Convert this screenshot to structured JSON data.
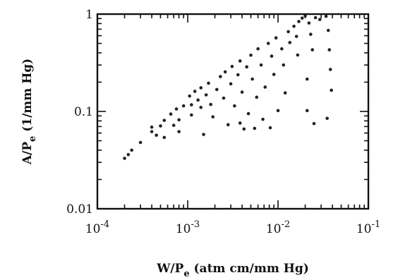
{
  "chart_data": {
    "type": "scatter",
    "title": "",
    "xlabel": {
      "main": "W/P",
      "sub": "e",
      "rest": " (atm cm/mm Hg)"
    },
    "ylabel": {
      "main": "A/P",
      "sub": "e",
      "rest": " (1/mm Hg)"
    },
    "x_scale": "log",
    "y_scale": "log",
    "xlim": [
      0.0001,
      0.1
    ],
    "ylim": [
      0.01,
      1
    ],
    "x_ticks": [
      {
        "value": 0.0001,
        "base": "10",
        "exp": "-4"
      },
      {
        "value": 0.001,
        "base": "10",
        "exp": "-3"
      },
      {
        "value": 0.01,
        "base": "10",
        "exp": "-2"
      },
      {
        "value": 0.1,
        "base": "10",
        "exp": "-1"
      }
    ],
    "y_ticks": [
      {
        "value": 0.01,
        "label": "0.01"
      },
      {
        "value": 0.1,
        "label": "0.1"
      },
      {
        "value": 1,
        "label": "1"
      }
    ],
    "grid": false,
    "legend": "none",
    "points": [
      [
        0.0002,
        0.033
      ],
      [
        0.00022,
        0.036
      ],
      [
        0.00024,
        0.04
      ],
      [
        0.0003,
        0.048
      ],
      [
        0.0004,
        0.062
      ],
      [
        0.0004,
        0.069
      ],
      [
        0.00045,
        0.057
      ],
      [
        0.0005,
        0.071
      ],
      [
        0.00055,
        0.081
      ],
      [
        0.00055,
        0.054
      ],
      [
        0.00065,
        0.094
      ],
      [
        0.0007,
        0.072
      ],
      [
        0.00075,
        0.106
      ],
      [
        0.0008,
        0.082
      ],
      [
        0.0008,
        0.062
      ],
      [
        0.0009,
        0.114
      ],
      [
        0.00105,
        0.144
      ],
      [
        0.0011,
        0.117
      ],
      [
        0.0011,
        0.092
      ],
      [
        0.0012,
        0.161
      ],
      [
        0.0013,
        0.131
      ],
      [
        0.0014,
        0.175
      ],
      [
        0.0014,
        0.11
      ],
      [
        0.0015,
        0.058
      ],
      [
        0.0016,
        0.148
      ],
      [
        0.0017,
        0.195
      ],
      [
        0.0018,
        0.118
      ],
      [
        0.0019,
        0.088
      ],
      [
        0.0021,
        0.168
      ],
      [
        0.0023,
        0.228
      ],
      [
        0.0025,
        0.137
      ],
      [
        0.0026,
        0.255
      ],
      [
        0.0028,
        0.073
      ],
      [
        0.003,
        0.192
      ],
      [
        0.0031,
        0.29
      ],
      [
        0.0033,
        0.114
      ],
      [
        0.0036,
        0.238
      ],
      [
        0.0038,
        0.33
      ],
      [
        0.0038,
        0.076
      ],
      [
        0.004,
        0.158
      ],
      [
        0.0042,
        0.066
      ],
      [
        0.0045,
        0.287
      ],
      [
        0.0047,
        0.095
      ],
      [
        0.005,
        0.378
      ],
      [
        0.0052,
        0.215
      ],
      [
        0.0055,
        0.067
      ],
      [
        0.0058,
        0.14
      ],
      [
        0.006,
        0.44
      ],
      [
        0.0065,
        0.3
      ],
      [
        0.0068,
        0.083
      ],
      [
        0.0072,
        0.178
      ],
      [
        0.0078,
        0.5
      ],
      [
        0.0082,
        0.068
      ],
      [
        0.0085,
        0.37
      ],
      [
        0.009,
        0.24
      ],
      [
        0.0095,
        0.57
      ],
      [
        0.01,
        0.102
      ],
      [
        0.011,
        0.44
      ],
      [
        0.0115,
        0.3
      ],
      [
        0.012,
        0.155
      ],
      [
        0.013,
        0.66
      ],
      [
        0.0135,
        0.51
      ],
      [
        0.015,
        0.75
      ],
      [
        0.016,
        0.59
      ],
      [
        0.0165,
        0.38
      ],
      [
        0.017,
        0.84
      ],
      [
        0.0185,
        0.91
      ],
      [
        0.02,
        0.96
      ],
      [
        0.021,
        0.215
      ],
      [
        0.021,
        0.102
      ],
      [
        0.022,
        0.81
      ],
      [
        0.023,
        0.62
      ],
      [
        0.024,
        0.43
      ],
      [
        0.025,
        0.075
      ],
      [
        0.026,
        0.92
      ],
      [
        0.029,
        0.88
      ],
      [
        0.034,
        0.95
      ],
      [
        0.035,
        0.085
      ],
      [
        0.036,
        0.68
      ],
      [
        0.037,
        0.43
      ],
      [
        0.038,
        0.27
      ],
      [
        0.039,
        0.165
      ]
    ]
  }
}
